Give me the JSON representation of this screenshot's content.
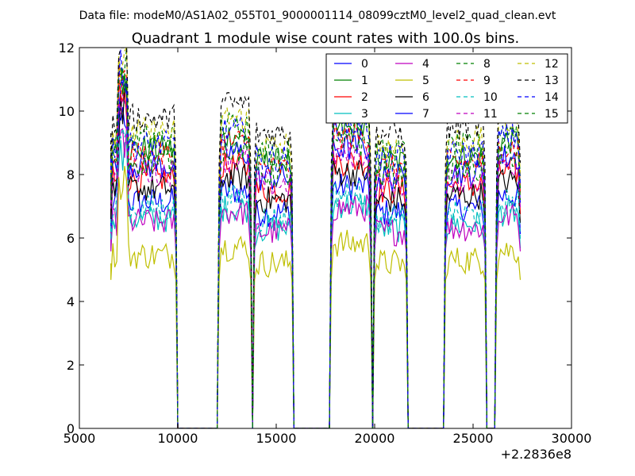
{
  "suptitle": "Data file: modeM0/AS1A02_055T01_9000001114_08099cztM0_level2_quad_clean.evt",
  "chart_data": {
    "type": "line",
    "title": "Quadrant 1 module wise count rates with 100.0s bins.",
    "xlabel": "",
    "ylabel": "",
    "xlim": [
      5000,
      30000
    ],
    "ylim": [
      0,
      12
    ],
    "x_ticks": [
      5000,
      10000,
      15000,
      20000,
      25000,
      30000
    ],
    "x_tick_labels": [
      "5000",
      "10000",
      "15000",
      "20000",
      "25000",
      "30000"
    ],
    "y_ticks": [
      0,
      2,
      4,
      6,
      8,
      10,
      12
    ],
    "y_tick_labels": [
      "0",
      "2",
      "4",
      "6",
      "8",
      "10",
      "12"
    ],
    "x_offset_label": "+2.2836e8",
    "grid": false,
    "legend_position": "top-right",
    "time_bin_s": 100,
    "segments": [
      {
        "start": 6600,
        "end": 9900
      },
      {
        "start": 12100,
        "end": 13700
      },
      {
        "start": 13900,
        "end": 15800
      },
      {
        "start": 17800,
        "end": 19800
      },
      {
        "start": 20000,
        "end": 21600
      },
      {
        "start": 23600,
        "end": 25600
      },
      {
        "start": 26200,
        "end": 27400
      }
    ],
    "series": [
      {
        "name": "0",
        "color": "#0000ff",
        "style": "solid",
        "level": 6.8
      },
      {
        "name": "1",
        "color": "#008000",
        "style": "solid",
        "level": 8.4
      },
      {
        "name": "2",
        "color": "#ff0000",
        "style": "solid",
        "level": 7.5
      },
      {
        "name": "3",
        "color": "#00bfbf",
        "style": "solid",
        "level": 6.3
      },
      {
        "name": "4",
        "color": "#bf00bf",
        "style": "solid",
        "level": 6.2
      },
      {
        "name": "5",
        "color": "#bfbf00",
        "style": "solid",
        "level": 5.2
      },
      {
        "name": "6",
        "color": "#000000",
        "style": "solid",
        "level": 7.2
      },
      {
        "name": "7",
        "color": "#0000ff",
        "style": "solid",
        "level": 7.9
      },
      {
        "name": "8",
        "color": "#008000",
        "style": "dashed",
        "level": 8.7
      },
      {
        "name": "9",
        "color": "#ff0000",
        "style": "dashed",
        "level": 8.2
      },
      {
        "name": "10",
        "color": "#00bfbf",
        "style": "dashed",
        "level": 6.6
      },
      {
        "name": "11",
        "color": "#bf00bf",
        "style": "dashed",
        "level": 7.7
      },
      {
        "name": "12",
        "color": "#bfbf00",
        "style": "dashed",
        "level": 8.9
      },
      {
        "name": "13",
        "color": "#000000",
        "style": "dashed",
        "level": 9.3
      },
      {
        "name": "14",
        "color": "#0000ff",
        "style": "dashed",
        "level": 8.5
      },
      {
        "name": "15",
        "color": "#008000",
        "style": "dashed",
        "level": 8.0
      }
    ]
  }
}
